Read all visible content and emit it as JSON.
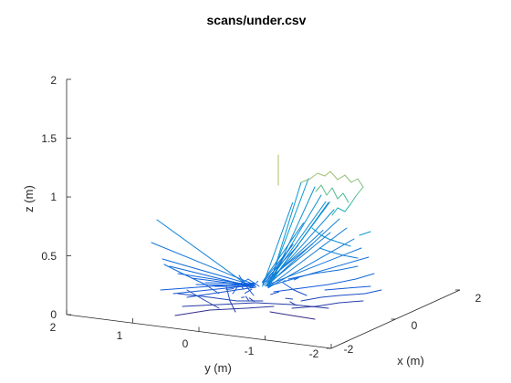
{
  "chart_data": {
    "type": "line3d",
    "title": "scans/under.csv",
    "xlabel": "x (m)",
    "ylabel": "y (m)",
    "zlabel": "z (m)",
    "xlim": [
      -2,
      2
    ],
    "ylim": [
      -2,
      2
    ],
    "zlim": [
      0,
      2
    ],
    "x_ticks": [
      "-2",
      "0",
      "2"
    ],
    "y_ticks": [
      "2",
      "1",
      "0",
      "-1",
      "-2"
    ],
    "z_ticks": [
      "0",
      "0.5",
      "1",
      "1.5",
      "2"
    ],
    "grid": false,
    "colormap": "parula",
    "color_by": "z",
    "note_levels": "line colors follow height z"
  }
}
